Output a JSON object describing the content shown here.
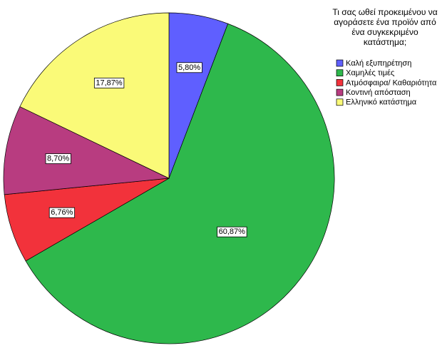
{
  "chart_data": {
    "type": "pie",
    "legend_title": "Τι σας ωθεί προκειμένου να αγοράσετε ένα προϊόν από ένα συγκεκριμένο κατάστημα;",
    "categories": [
      "Καλή εξυπηρέτηση",
      "Χαμηλές τιμές",
      "Ατμόσφαιρα/ Καθαριότητα",
      "Κοντινή απόσταση",
      "Ελληνικό κατάστημα"
    ],
    "values": [
      5.8,
      60.87,
      6.76,
      8.7,
      17.87
    ],
    "value_labels": [
      "5,80%",
      "60,87%",
      "6,76%",
      "8,70%",
      "17,87%"
    ],
    "colors": [
      "#5f5fff",
      "#2eb84c",
      "#f2323b",
      "#b83c80",
      "#fafa78"
    ],
    "legend": "top-right"
  }
}
